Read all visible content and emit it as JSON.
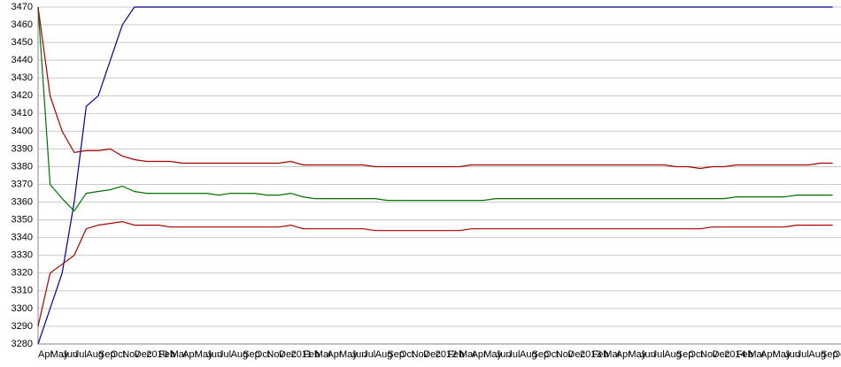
{
  "chart_data": {
    "type": "line",
    "categories": [
      "Apr",
      "May",
      "Jun",
      "Jul",
      "Aug",
      "Sep",
      "Oct",
      "Nov",
      "Dec",
      "2010",
      "Feb",
      "Mar",
      "Apr",
      "May",
      "Jun",
      "Jul",
      "Aug",
      "Sep",
      "Oct",
      "Nov",
      "Dec",
      "2011",
      "Feb",
      "Mar",
      "Apr",
      "May",
      "Jun",
      "Jul",
      "Aug",
      "Sep",
      "Oct",
      "Nov",
      "Dec",
      "2012",
      "Feb",
      "Mar",
      "Apr",
      "May",
      "Jun",
      "Jul",
      "Aug",
      "Sep",
      "Oct",
      "Nov",
      "Dec",
      "2013",
      "Feb",
      "Mar",
      "Apr",
      "May",
      "Jun",
      "Jul",
      "Aug",
      "Sep",
      "Oct",
      "Nov",
      "Dec",
      "2014",
      "Feb",
      "Mar",
      "Apr",
      "May",
      "Jun",
      "Jul",
      "Aug",
      "Sep",
      "Oct"
    ],
    "series": [
      {
        "color": "#00008b",
        "values": [
          3280,
          3300,
          3320,
          3360,
          3414,
          3420,
          3440,
          3460,
          3470,
          3470,
          3470,
          3470,
          3470,
          3470,
          3470,
          3470,
          3470,
          3470,
          3470,
          3470,
          3470,
          3470,
          3470,
          3470,
          3470,
          3470,
          3470,
          3470,
          3470,
          3470,
          3470,
          3470,
          3470,
          3470,
          3470,
          3470,
          3470,
          3470,
          3470,
          3470,
          3470,
          3470,
          3470,
          3470,
          3470,
          3470,
          3470,
          3470,
          3470,
          3470,
          3470,
          3470,
          3470,
          3470,
          3470,
          3470,
          3470,
          3470,
          3470,
          3470,
          3470,
          3470,
          3470,
          3470,
          3470,
          3470,
          3470
        ]
      },
      {
        "color": "#007000",
        "values": [
          3470,
          3370,
          3362,
          3355,
          3365,
          3366,
          3367,
          3369,
          3366,
          3365,
          3365,
          3365,
          3365,
          3365,
          3365,
          3364,
          3365,
          3365,
          3365,
          3364,
          3364,
          3365,
          3363,
          3362,
          3362,
          3362,
          3362,
          3362,
          3362,
          3361,
          3361,
          3361,
          3361,
          3361,
          3361,
          3361,
          3361,
          3361,
          3362,
          3362,
          3362,
          3362,
          3362,
          3362,
          3362,
          3362,
          3362,
          3362,
          3362,
          3362,
          3362,
          3362,
          3362,
          3362,
          3362,
          3362,
          3362,
          3362,
          3363,
          3363,
          3363,
          3363,
          3363,
          3364,
          3364,
          3364,
          3364
        ]
      },
      {
        "color": "#a00000",
        "values": [
          3470,
          3420,
          3400,
          3388,
          3389,
          3389,
          3390,
          3386,
          3384,
          3383,
          3383,
          3383,
          3382,
          3382,
          3382,
          3382,
          3382,
          3382,
          3382,
          3382,
          3382,
          3383,
          3381,
          3381,
          3381,
          3381,
          3381,
          3381,
          3380,
          3380,
          3380,
          3380,
          3380,
          3380,
          3380,
          3380,
          3381,
          3381,
          3381,
          3381,
          3381,
          3381,
          3381,
          3381,
          3381,
          3381,
          3381,
          3381,
          3381,
          3381,
          3381,
          3381,
          3381,
          3380,
          3380,
          3379,
          3380,
          3380,
          3381,
          3381,
          3381,
          3381,
          3381,
          3381,
          3381,
          3382,
          3382
        ]
      },
      {
        "color": "#a00000",
        "values": [
          3290,
          3320,
          3325,
          3330,
          3345,
          3347,
          3348,
          3349,
          3347,
          3347,
          3347,
          3346,
          3346,
          3346,
          3346,
          3346,
          3346,
          3346,
          3346,
          3346,
          3346,
          3347,
          3345,
          3345,
          3345,
          3345,
          3345,
          3345,
          3344,
          3344,
          3344,
          3344,
          3344,
          3344,
          3344,
          3344,
          3345,
          3345,
          3345,
          3345,
          3345,
          3345,
          3345,
          3345,
          3345,
          3345,
          3345,
          3345,
          3345,
          3345,
          3345,
          3345,
          3345,
          3345,
          3345,
          3345,
          3346,
          3346,
          3346,
          3346,
          3346,
          3346,
          3346,
          3347,
          3347,
          3347,
          3347
        ]
      }
    ],
    "ylim": [
      3280,
      3470
    ],
    "yticks": [
      3280,
      3290,
      3300,
      3310,
      3320,
      3330,
      3340,
      3350,
      3360,
      3370,
      3380,
      3390,
      3400,
      3410,
      3420,
      3430,
      3440,
      3450,
      3460,
      3470
    ],
    "grid": true
  }
}
